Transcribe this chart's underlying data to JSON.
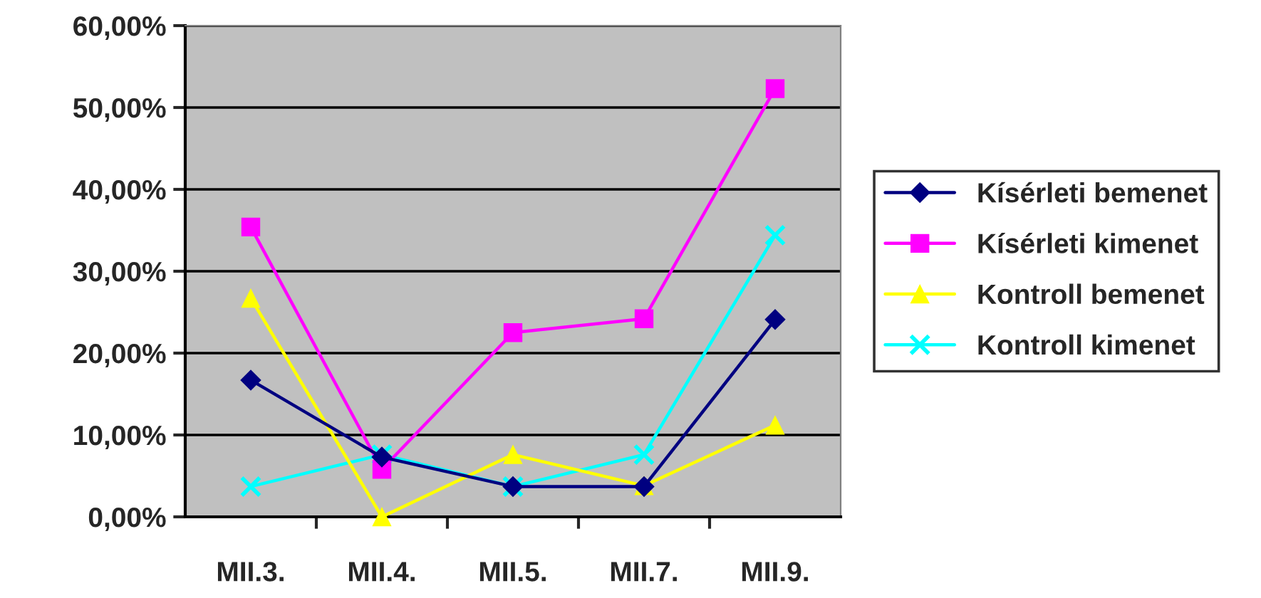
{
  "chart_data": {
    "type": "line",
    "categories": [
      "MII.3.",
      "MII.4.",
      "MII.5.",
      "MII.7.",
      "MII.9."
    ],
    "series": [
      {
        "name": "Kísérleti bemenet",
        "color": "#000080",
        "marker": "diamond",
        "values": [
          16.7,
          7.3,
          3.7,
          3.7,
          24.1
        ]
      },
      {
        "name": "Kísérleti kimenet",
        "color": "#ff00ff",
        "marker": "square",
        "values": [
          35.4,
          5.8,
          22.5,
          24.2,
          52.3
        ]
      },
      {
        "name": "Kontroll bemenet",
        "color": "#ffff00",
        "marker": "triangle",
        "values": [
          26.7,
          0,
          7.6,
          3.8,
          11.2
        ]
      },
      {
        "name": "Kontroll kimenet",
        "color": "#00ffff",
        "marker": "cross",
        "values": [
          3.7,
          7.6,
          3.7,
          7.6,
          34.4
        ]
      }
    ],
    "ylim": [
      0,
      60
    ],
    "yticks": [
      {
        "value": 0,
        "label": "0,00%"
      },
      {
        "value": 10,
        "label": "10,00%"
      },
      {
        "value": 20,
        "label": "20,00%"
      },
      {
        "value": 30,
        "label": "30,00%"
      },
      {
        "value": 40,
        "label": "40,00%"
      },
      {
        "value": 50,
        "label": "50,00%"
      },
      {
        "value": 60,
        "label": "60,00%"
      }
    ],
    "grid": "y",
    "legend": "right"
  }
}
